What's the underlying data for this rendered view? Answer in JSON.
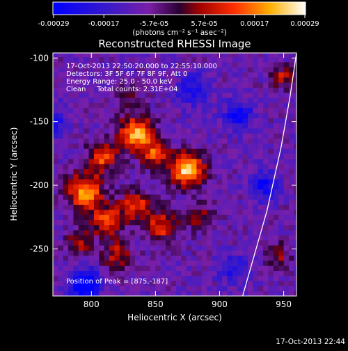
{
  "chart_data": {
    "type": "heatmap",
    "title": "Reconstructed RHESSI Image",
    "xlabel": "Heliocentric X (arcsec)",
    "ylabel": "Heliocentric Y (arcsec)",
    "xlim": [
      770,
      960
    ],
    "ylim": [
      -287,
      -96
    ],
    "x_ticks": [
      800,
      850,
      900,
      950
    ],
    "y_ticks": [
      -100,
      -150,
      -200,
      -250
    ],
    "colorbar": {
      "ticks": [
        "-0.00029",
        "-0.00017",
        "-5.7e-05",
        "5.7e-05",
        "0.00017",
        "0.00029"
      ],
      "unit_label": "(photons cm⁻² s⁻¹ asec⁻²)"
    },
    "annotations": [
      "17-Oct-2013 22:50:20.000 to 22:55:10.000",
      "Detectors: 3F 5F 6F 7F 8F 9F, Att 0",
      "Energy Range: 25.0 - 50.0 keV",
      "Clean     Total counts: 2.31E+04"
    ],
    "peak_label": "Position of Peak = [875,-187]",
    "peak": [
      875,
      -187
    ],
    "limb": [
      [
        918,
        -287
      ],
      [
        937,
        -220
      ],
      [
        948,
        -170
      ],
      [
        955,
        -130
      ],
      [
        960,
        -96
      ]
    ],
    "sources": [
      {
        "x": 875,
        "y": -187,
        "amp": 1.0,
        "sigma": 9
      },
      {
        "x": 835,
        "y": -160,
        "amp": 0.85,
        "sigma": 10
      },
      {
        "x": 808,
        "y": -178,
        "amp": 0.6,
        "sigma": 8
      },
      {
        "x": 850,
        "y": -176,
        "amp": 0.55,
        "sigma": 7
      },
      {
        "x": 795,
        "y": -205,
        "amp": 0.8,
        "sigma": 10
      },
      {
        "x": 812,
        "y": -228,
        "amp": 0.6,
        "sigma": 9
      },
      {
        "x": 835,
        "y": -215,
        "amp": 0.6,
        "sigma": 8
      },
      {
        "x": 855,
        "y": -232,
        "amp": 0.55,
        "sigma": 9
      },
      {
        "x": 820,
        "y": -255,
        "amp": 0.45,
        "sigma": 8
      },
      {
        "x": 790,
        "y": -245,
        "amp": 0.4,
        "sigma": 7
      },
      {
        "x": 885,
        "y": -225,
        "amp": 0.35,
        "sigma": 7
      },
      {
        "x": 830,
        "y": -130,
        "amp": 0.3,
        "sigma": 6
      },
      {
        "x": 950,
        "y": -115,
        "amp": 0.45,
        "sigma": 6
      },
      {
        "x": 945,
        "y": -255,
        "amp": 0.35,
        "sigma": 7
      }
    ],
    "negative_regions": [
      {
        "x": 795,
        "y": -278,
        "amp": -0.8,
        "sigma": 8
      },
      {
        "x": 915,
        "y": -145,
        "amp": -0.5,
        "sigma": 8
      },
      {
        "x": 935,
        "y": -200,
        "amp": -0.45,
        "sigma": 8
      },
      {
        "x": 880,
        "y": -125,
        "amp": -0.4,
        "sigma": 9
      },
      {
        "x": 770,
        "y": -150,
        "amp": -0.4,
        "sigma": 8
      },
      {
        "x": 910,
        "y": -265,
        "amp": -0.35,
        "sigma": 8
      }
    ]
  },
  "footer": {
    "timestamp": "17-Oct-2013 22:44"
  }
}
